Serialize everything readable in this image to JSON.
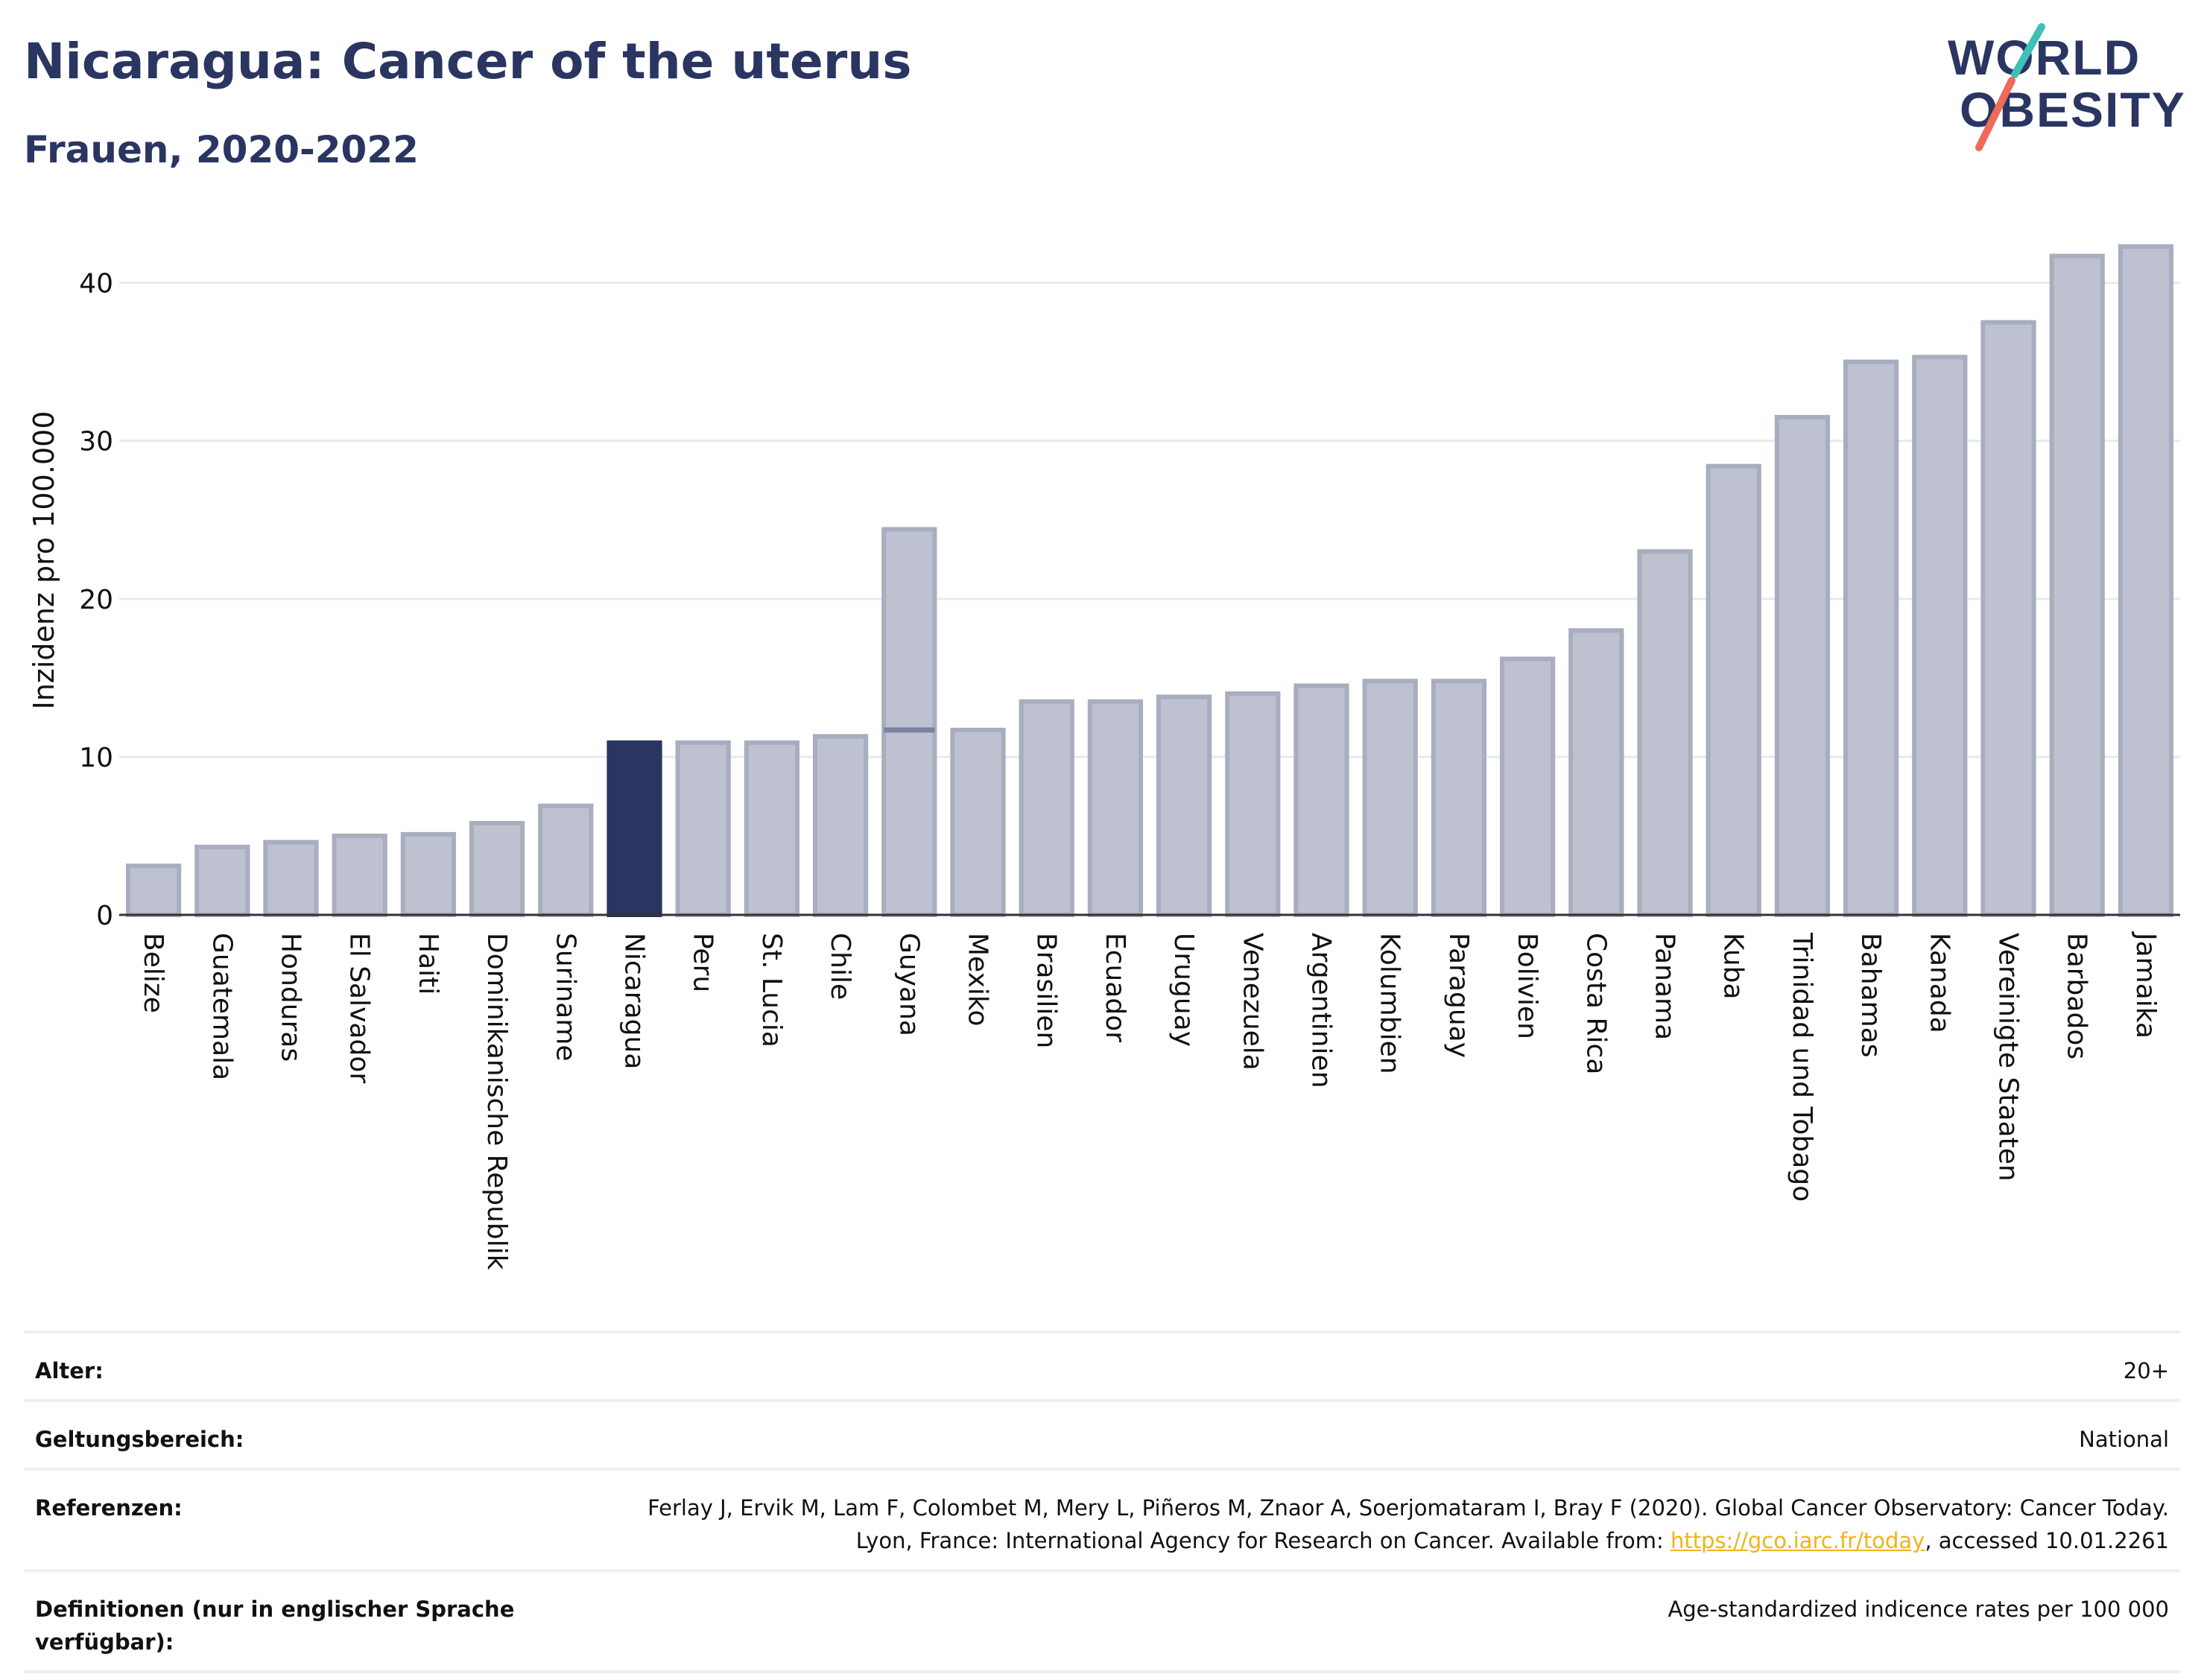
{
  "header": {
    "title": "Nicaragua: Cancer of the uterus",
    "subtitle": "Frauen, 2020-2022",
    "logo_line1": "WORLD",
    "logo_line2": "OBESITY"
  },
  "colors": {
    "title": "#2a3561",
    "bar": "#bec2d0",
    "bar_border": "#a8adc0",
    "highlight": "#2a3561",
    "grid": "#e8e9ee",
    "link": "#f0b419",
    "logo_teal": "#3fbfb6",
    "logo_coral": "#ee6b5a"
  },
  "chart_data": {
    "type": "bar",
    "ylabel": "Inzidenz pro 100.000",
    "xlabel": "",
    "ylim": [
      0,
      43
    ],
    "yticks": [
      0,
      10,
      20,
      30,
      40
    ],
    "grid": true,
    "highlight": "Nicaragua",
    "categories": [
      "Belize",
      "Guatemala",
      "Honduras",
      "El Salvador",
      "Haiti",
      "Dominikanische Republik",
      "Suriname",
      "Nicaragua",
      "Peru",
      "St. Lucia",
      "Chile",
      "Guyana",
      "Mexiko",
      "Brasilien",
      "Ecuador",
      "Uruguay",
      "Venezuela",
      "Argentinien",
      "Kolumbien",
      "Paraguay",
      "Bolivien",
      "Costa Rica",
      "Panama",
      "Kuba",
      "Trinidad und Tobago",
      "Bahamas",
      "Kanada",
      "Vereinigte Staaten",
      "Barbados",
      "Jamaika"
    ],
    "values": [
      3.1,
      4.3,
      4.6,
      5.0,
      5.1,
      5.8,
      6.9,
      10.9,
      10.9,
      10.9,
      11.3,
      24.4,
      11.7,
      13.5,
      13.5,
      13.8,
      14.0,
      14.5,
      14.8,
      14.8,
      16.2,
      18.0,
      23.0,
      28.4,
      31.5,
      35.0,
      35.3,
      37.5,
      41.7,
      42.3
    ],
    "secondary_marks": [
      {
        "category": "Guyana",
        "value": 11.7
      }
    ]
  },
  "meta": {
    "rows": [
      {
        "label": "Alter:",
        "value": "20+"
      },
      {
        "label": "Geltungsbereich:",
        "value": "National"
      },
      {
        "label": "Referenzen:",
        "value_pre": "Ferlay J, Ervik M, Lam F, Colombet M, Mery L, Piñeros M, Znaor A, Soerjomataram I, Bray F (2020). Global Cancer Observatory: Cancer Today. Lyon, France: International Agency for Research on Cancer. Available from: ",
        "link": "https://gco.iarc.fr/today",
        "value_post": ", accessed 10.01.2261"
      },
      {
        "label": "Definitionen (nur in englischer Sprache verfügbar):",
        "value": "Age-standardized indicence rates per 100 000"
      }
    ]
  }
}
